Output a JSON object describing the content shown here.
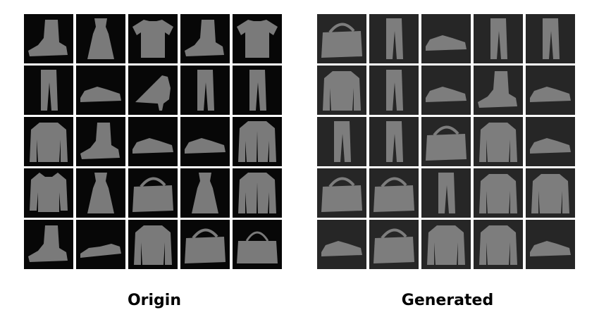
{
  "panels": [
    {
      "title": "Origin",
      "items": [
        "ankle-boot",
        "dress",
        "t-shirt",
        "ankle-boot",
        "t-shirt",
        "trouser",
        "sneaker",
        "heel-shoe",
        "trouser",
        "trouser",
        "pullover",
        "ankle-boot",
        "sneaker",
        "sneaker",
        "coat",
        "shirt",
        "dress",
        "bag",
        "dress",
        "coat",
        "ankle-boot",
        "sandal",
        "pullover",
        "bag",
        "handbag"
      ]
    },
    {
      "title": "Generated",
      "items": [
        "bag",
        "trouser",
        "sneaker",
        "trouser",
        "trouser",
        "pullover",
        "trouser",
        "sneaker",
        "ankle-boot",
        "sneaker",
        "trouser",
        "trouser",
        "bag",
        "pullover",
        "sneaker",
        "bag",
        "bag",
        "trouser",
        "pullover",
        "pullover",
        "sneaker",
        "bag",
        "pullover",
        "pullover",
        "sneaker"
      ]
    }
  ],
  "colors": {
    "origin_bg": "#070707",
    "generated_bg": "#262626",
    "origin_item": "#7a7a7a",
    "generated_item": "#7d7d7d"
  }
}
